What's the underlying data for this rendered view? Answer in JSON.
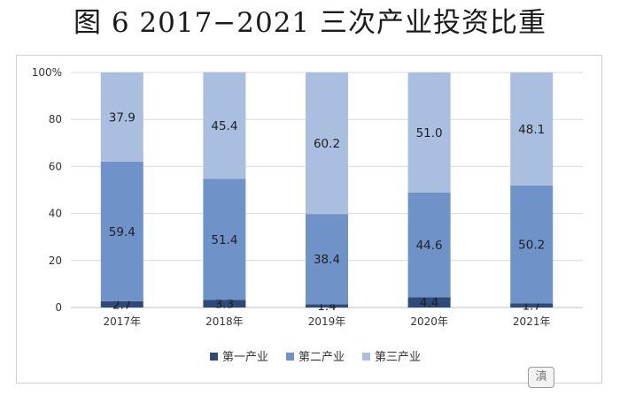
{
  "page": {
    "title": "图 6 2017−2021 三次产业投资比重",
    "watermark": "滇"
  },
  "colors": {
    "primary": "#2e4a79",
    "secondary": "#6f93c9",
    "tertiary": "#aabfe0",
    "grid": "#d9d9d9",
    "axis": "#bfbfbf"
  },
  "chart_data": {
    "type": "bar",
    "stacked": true,
    "title": "图 6 2017−2021 三次产业投资比重",
    "categories": [
      "2017年",
      "2018年",
      "2019年",
      "2020年",
      "2021年"
    ],
    "series": [
      {
        "name": "第一产业",
        "color": "#2e4a79",
        "values": [
          2.7,
          3.3,
          1.4,
          4.4,
          1.7
        ]
      },
      {
        "name": "第二产业",
        "color": "#6f93c9",
        "values": [
          59.4,
          51.4,
          38.4,
          44.6,
          50.2
        ]
      },
      {
        "name": "第三产业",
        "color": "#aabfe0",
        "values": [
          37.9,
          45.4,
          60.2,
          51.0,
          48.1
        ]
      }
    ],
    "value_labels": [
      [
        "2.7",
        "3.3",
        "1.4",
        "4.4",
        "1.7"
      ],
      [
        "59.4",
        "51.4",
        "38.4",
        "44.6",
        "50.2"
      ],
      [
        "37.9",
        "45.4",
        "60.2",
        "51.0",
        "48.1"
      ]
    ],
    "yticks": [
      "0",
      "20",
      "40",
      "60",
      "80",
      "100%"
    ],
    "ylim": [
      0,
      100
    ],
    "grid": true,
    "legend": "bottom-center"
  }
}
